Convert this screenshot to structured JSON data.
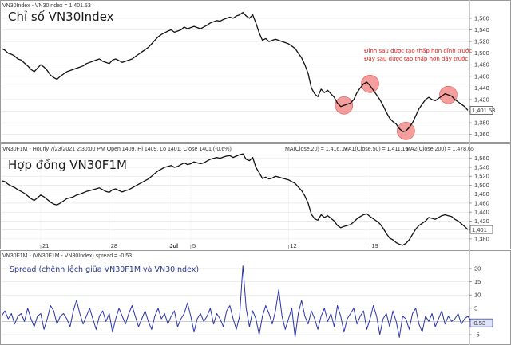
{
  "colors": {
    "price_line": "#111111",
    "spread_line": "#2a34a8",
    "circle": "#f07d7d",
    "annotation": "#e0201b",
    "grid": "#e2e2e2",
    "panel_border": "#999999",
    "ma20": "#d08a24",
    "ma200": "#9b3fa6"
  },
  "chart_data": [
    {
      "type": "line",
      "panel": "vn30index",
      "header": "VN30Index - VN30Index = 1,401.53",
      "title": "Chỉ số VN30Index",
      "last_value_label": "1,401.53",
      "y_ticks": [
        "1,560",
        "1,540",
        "1,520",
        "1,500",
        "1,480",
        "1,460",
        "1,440",
        "1,420",
        "1,400",
        "1,380",
        "1,360"
      ],
      "ylim": [
        1350,
        1575
      ],
      "annotations": [
        "Đỉnh sau được tạo thấp hơn đỉnh trước",
        "Đáy sau được tạo thấp hơn đáy trước"
      ],
      "circles": [
        {
          "x": 105,
          "y": 1410
        },
        {
          "x": 113,
          "y": 1447
        },
        {
          "x": 124,
          "y": 1366
        },
        {
          "x": 137,
          "y": 1428
        }
      ],
      "series": [
        {
          "values": [
            1508,
            1505,
            1500,
            1498,
            1495,
            1490,
            1488,
            1483,
            1478,
            1472,
            1468,
            1474,
            1480,
            1476,
            1470,
            1462,
            1458,
            1455,
            1460,
            1464,
            1468,
            1470,
            1472,
            1474,
            1476,
            1478,
            1482,
            1484,
            1486,
            1488,
            1490,
            1486,
            1484,
            1482,
            1488,
            1490,
            1487,
            1484,
            1486,
            1488,
            1490,
            1494,
            1498,
            1502,
            1506,
            1510,
            1516,
            1522,
            1528,
            1532,
            1535,
            1538,
            1540,
            1536,
            1538,
            1540,
            1545,
            1542,
            1544,
            1546,
            1544,
            1542,
            1545,
            1548,
            1552,
            1554,
            1556,
            1555,
            1558,
            1560,
            1562,
            1560,
            1564,
            1566,
            1570,
            1564,
            1560,
            1566,
            1552,
            1535,
            1522,
            1525,
            1520,
            1522,
            1524,
            1522,
            1520,
            1518,
            1516,
            1512,
            1508,
            1500,
            1492,
            1480,
            1465,
            1440,
            1430,
            1425,
            1438,
            1432,
            1436,
            1430,
            1424,
            1414,
            1408,
            1410,
            1412,
            1414,
            1420,
            1432,
            1440,
            1447,
            1450,
            1444,
            1436,
            1428,
            1420,
            1410,
            1398,
            1388,
            1382,
            1378,
            1370,
            1365,
            1366,
            1372,
            1380,
            1392,
            1404,
            1412,
            1420,
            1424,
            1420,
            1418,
            1422,
            1426,
            1430,
            1428,
            1426,
            1420,
            1416,
            1412,
            1408,
            1401.53
          ]
        }
      ]
    },
    {
      "type": "line",
      "panel": "vn30f1m",
      "header": "VN30F1M - Hourly 7/23/2021 2:30:00 PM Open 1409, Hi 1409, Lo 1401, Close 1401 (-0.6%)",
      "indicators": [
        {
          "label": "MA(Close,20) = 1,416.17"
        },
        {
          "label": "MA1(Close,50) = 1,411.10"
        },
        {
          "label": "MA2(Close,200) = 1,478.65"
        }
      ],
      "title": "Hợp đồng VN30F1M",
      "last_value_label": "1,401",
      "y_ticks": [
        "1,560",
        "1,540",
        "1,520",
        "1,500",
        "1,480",
        "1,460",
        "1,440",
        "1,420",
        "1,400",
        "1,380"
      ],
      "ylim": [
        1362,
        1572
      ],
      "x_tick_labels": [
        "21",
        "28",
        "Jul",
        "5",
        "12",
        "19"
      ],
      "x_tick_positions": [
        12,
        33,
        51,
        58,
        88,
        113
      ],
      "series": [
        {
          "values": [
            1510,
            1508,
            1502,
            1498,
            1495,
            1490,
            1486,
            1482,
            1476,
            1470,
            1466,
            1472,
            1478,
            1474,
            1468,
            1462,
            1458,
            1456,
            1460,
            1465,
            1470,
            1472,
            1474,
            1478,
            1480,
            1483,
            1486,
            1488,
            1490,
            1492,
            1494,
            1490,
            1486,
            1484,
            1490,
            1492,
            1488,
            1485,
            1488,
            1490,
            1494,
            1498,
            1502,
            1506,
            1510,
            1514,
            1520,
            1526,
            1532,
            1536,
            1540,
            1542,
            1544,
            1540,
            1542,
            1546,
            1550,
            1546,
            1548,
            1552,
            1550,
            1548,
            1550,
            1554,
            1558,
            1560,
            1562,
            1560,
            1563,
            1565,
            1566,
            1562,
            1565,
            1568,
            1570,
            1558,
            1555,
            1562,
            1540,
            1528,
            1515,
            1518,
            1514,
            1516,
            1520,
            1518,
            1516,
            1514,
            1512,
            1508,
            1504,
            1496,
            1488,
            1476,
            1460,
            1435,
            1425,
            1422,
            1434,
            1428,
            1432,
            1426,
            1420,
            1410,
            1405,
            1408,
            1410,
            1412,
            1418,
            1425,
            1430,
            1434,
            1436,
            1430,
            1425,
            1420,
            1414,
            1404,
            1392,
            1382,
            1378,
            1372,
            1368,
            1366,
            1370,
            1378,
            1390,
            1402,
            1410,
            1415,
            1420,
            1428,
            1426,
            1424,
            1428,
            1432,
            1434,
            1432,
            1430,
            1424,
            1420,
            1414,
            1408,
            1401
          ]
        }
      ]
    },
    {
      "type": "line",
      "panel": "spread",
      "header": "VN30F1M - (VN30F1M - VN30Index) spread = -0.53",
      "title": "Spread (chênh lệch giữa VN30F1M và VN30Index)",
      "last_value_label": "-0.53",
      "y_ticks": [
        "20",
        "15",
        "10",
        "5",
        "0",
        "-5"
      ],
      "ylim": [
        -8,
        23
      ],
      "series": [
        {
          "values": [
            2,
            4,
            1,
            3,
            -1,
            2,
            3,
            0,
            5,
            1,
            -2,
            2,
            3,
            -3,
            1,
            6,
            4,
            -1,
            2,
            3,
            1,
            -2,
            4,
            8,
            3,
            -1,
            2,
            5,
            1,
            -3,
            2,
            4,
            0,
            3,
            -4,
            1,
            5,
            2,
            -1,
            3,
            6,
            2,
            -2,
            1,
            4,
            0,
            -3,
            2,
            5,
            1,
            3,
            -1,
            2,
            4,
            -2,
            1,
            3,
            7,
            2,
            -4,
            1,
            3,
            0,
            2,
            5,
            -1,
            3,
            1,
            -2,
            4,
            6,
            1,
            -3,
            2,
            21,
            5,
            -2,
            4,
            1,
            -5,
            2,
            6,
            3,
            -1,
            4,
            12,
            2,
            -3,
            1,
            5,
            -6,
            3,
            8,
            2,
            -1,
            4,
            1,
            -3,
            2,
            5,
            0,
            3,
            -2,
            6,
            2,
            -4,
            1,
            3,
            5,
            -1,
            2,
            4,
            -3,
            1,
            6,
            2,
            -5,
            1,
            3,
            -2,
            4,
            0,
            -6,
            2,
            1,
            -3,
            3,
            5,
            -1,
            -4,
            2,
            0,
            3,
            -2,
            1,
            4,
            -1,
            2,
            0,
            1,
            3,
            -1,
            1,
            2,
            0,
            -0.53
          ]
        }
      ]
    }
  ]
}
